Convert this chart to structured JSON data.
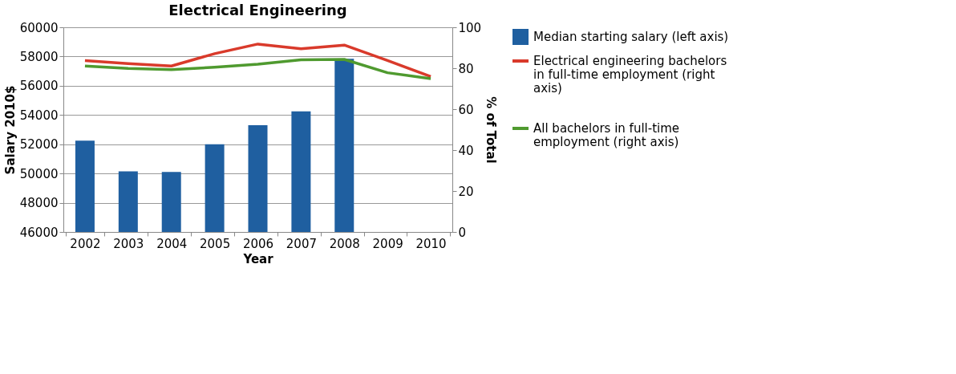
{
  "chart_data": {
    "type": "bar",
    "title": "Electrical Engineering",
    "xlabel": "Year",
    "ylabel": "Salary 2010$",
    "y2label": "% of Total",
    "categories": [
      "2002",
      "2003",
      "2004",
      "2005",
      "2006",
      "2007",
      "2008",
      "2009",
      "2010"
    ],
    "series": [
      {
        "name": "Median starting salary (left axis)",
        "color": "#1f5fa0",
        "values": [
          52250,
          50150,
          50100,
          52000,
          53300,
          54250,
          57850,
          null,
          null
        ]
      },
      {
        "name": "Electrical engineering bachelors in full-time employment (right axis)",
        "type": "line",
        "axis": "y2",
        "color": "#d93a2b",
        "values": [
          83.7,
          82.3,
          81.1,
          87.1,
          91.8,
          89.5,
          91.3,
          83.8,
          75.9
        ]
      },
      {
        "name": "All bachelors in full-time employment (right axis)",
        "type": "line",
        "axis": "y2",
        "color": "#4f9a2f",
        "values": [
          81.1,
          79.9,
          79.3,
          80.5,
          82.0,
          84.1,
          84.3,
          77.8,
          74.9
        ]
      }
    ],
    "ylim": [
      46000,
      60000
    ],
    "yticks": [
      46000,
      48000,
      50000,
      52000,
      54000,
      56000,
      58000,
      60000
    ],
    "y2lim": [
      0,
      100
    ],
    "y2ticks": [
      0,
      20,
      40,
      60,
      80,
      100
    ],
    "grid": "y",
    "legend": "right",
    "marker": "none",
    "line_style": "solid"
  }
}
